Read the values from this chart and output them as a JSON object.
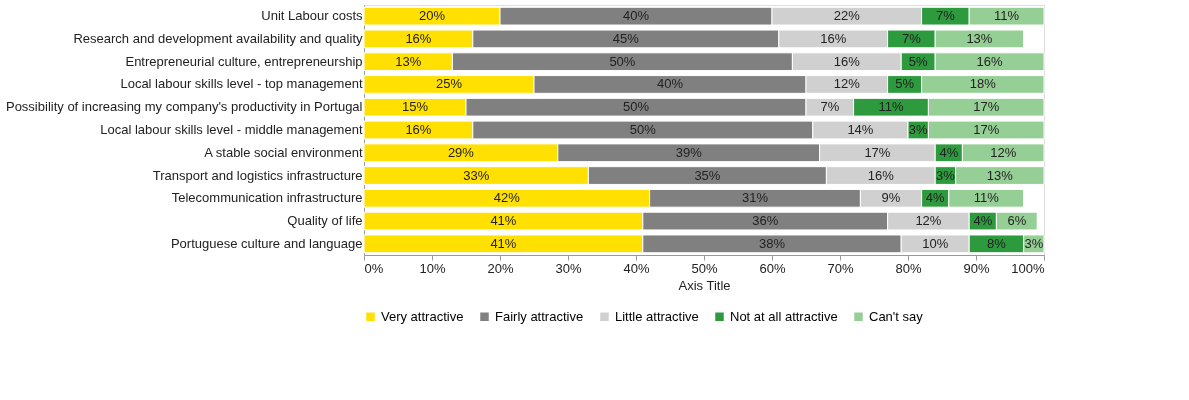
{
  "chart_data": {
    "type": "bar",
    "orientation": "horizontal",
    "stacked": true,
    "categories": [
      "Unit Labour costs",
      "Research and development availability and quality",
      "Entrepreneurial culture, entrepreneurship",
      "Local labour skills level - top management",
      "Possibility of increasing my company's productivity in Portugal",
      "Local labour skills level - middle management",
      "A stable social environment",
      "Transport and logistics infrastructure",
      "Telecommunication infrastructure",
      "Quality of life",
      "Portuguese culture and language"
    ],
    "series": [
      {
        "name": "Very attractive",
        "color": "#ffe000",
        "values": [
          20,
          16,
          13,
          25,
          15,
          16,
          28.5,
          33,
          42,
          41,
          41
        ],
        "value_labels": [
          "20%",
          "16%",
          "13%",
          "25%",
          "15%",
          "16%",
          "29%",
          "33%",
          "42%",
          "41%",
          "41%"
        ]
      },
      {
        "name": "Fairly attractive",
        "color": "#808080",
        "values": [
          40,
          45,
          50,
          40,
          50,
          50,
          38.5,
          35,
          31,
          36,
          38
        ],
        "value_labels": [
          "40%",
          "45%",
          "50%",
          "40%",
          "50%",
          "50%",
          "39%",
          "35%",
          "31%",
          "36%",
          "38%"
        ]
      },
      {
        "name": "Little attractive",
        "color": "#d0d0d0",
        "values": [
          22,
          16,
          16,
          12,
          7,
          14,
          17,
          16,
          9,
          12,
          10
        ],
        "value_labels": [
          "22%",
          "16%",
          "16%",
          "12%",
          "7%",
          "14%",
          "17%",
          "16%",
          "9%",
          "12%",
          "10%"
        ]
      },
      {
        "name": "Not at all attractive",
        "color": "#2e9a3e",
        "values": [
          7,
          7,
          5,
          5,
          11,
          3,
          4,
          3,
          4,
          4,
          8
        ],
        "value_labels": [
          "7%",
          "7%",
          "5%",
          "5%",
          "11%",
          "3%",
          "4%",
          "3%",
          "4%",
          "4%",
          "8%"
        ]
      },
      {
        "name": "Can't say",
        "color": "#96cf96",
        "values": [
          11,
          13,
          16,
          18,
          17,
          17,
          12,
          13,
          11,
          6,
          3
        ],
        "value_labels": [
          "11%",
          "13%",
          "16%",
          "18%",
          "17%",
          "17%",
          "12%",
          "13%",
          "11%",
          "6%",
          "3%"
        ]
      }
    ],
    "xlim": [
      0,
      100
    ],
    "xticks": [
      {
        "value": 0,
        "label": "0%"
      },
      {
        "value": 10,
        "label": "10%"
      },
      {
        "value": 20,
        "label": "20%"
      },
      {
        "value": 30,
        "label": "30%"
      },
      {
        "value": 40,
        "label": "40%"
      },
      {
        "value": 50,
        "label": "50%"
      },
      {
        "value": 60,
        "label": "60%"
      },
      {
        "value": 70,
        "label": "70%"
      },
      {
        "value": 80,
        "label": "80%"
      },
      {
        "value": 90,
        "label": "90%"
      },
      {
        "value": 100,
        "label": "100%"
      }
    ],
    "xlabel": "Axis Title",
    "legend": "bottom",
    "grid": false
  }
}
